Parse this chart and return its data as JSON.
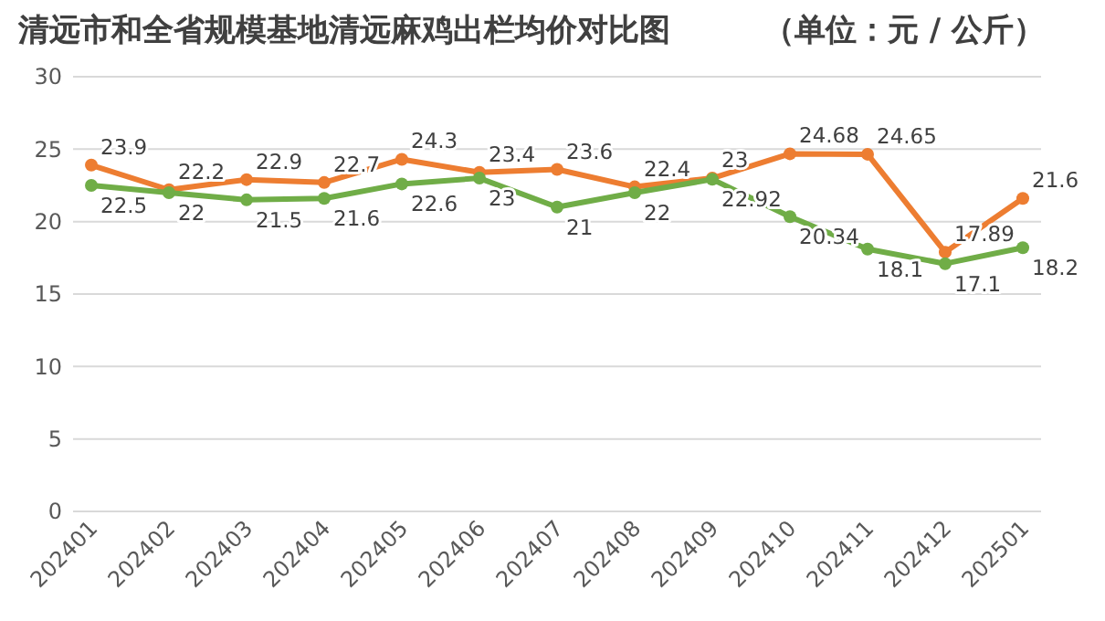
{
  "chart_data": {
    "type": "line",
    "title": "清远市和全省规模基地清远麻鸡出栏均价对比图　　　（单位：元 / 公斤）",
    "categories": [
      "202401",
      "202402",
      "202403",
      "202404",
      "202405",
      "202406",
      "202407",
      "202408",
      "202409",
      "202410",
      "202411",
      "202412",
      "202501"
    ],
    "series": [
      {
        "color": "#ed7d31",
        "values": [
          23.9,
          22.2,
          22.9,
          22.7,
          24.3,
          23.4,
          23.6,
          22.4,
          23,
          24.68,
          24.65,
          17.89,
          21.6
        ]
      },
      {
        "color": "#70ad47",
        "values": [
          22.5,
          22,
          21.5,
          21.6,
          22.6,
          23,
          21,
          22,
          22.92,
          20.34,
          18.1,
          17.1,
          18.2
        ]
      }
    ],
    "ylim": [
      0,
      30
    ],
    "yticks": [
      0,
      5,
      10,
      15,
      20,
      25,
      30
    ],
    "grid": "y",
    "marker": "circle",
    "line_style": "solid",
    "data_labels": true
  }
}
